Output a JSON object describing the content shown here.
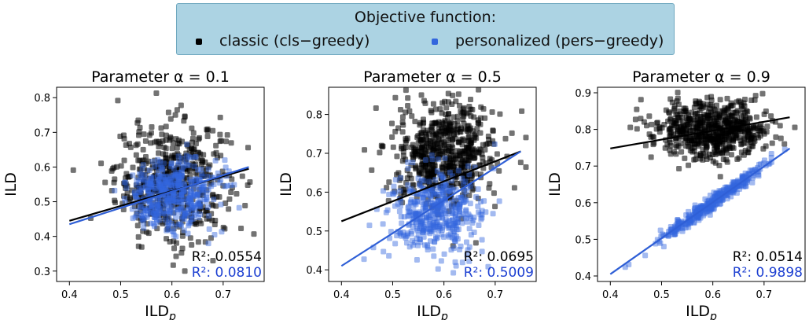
{
  "legend": {
    "title": "Objective function:",
    "entries": [
      {
        "label": "classic (cls−greedy)",
        "color": "#000000"
      },
      {
        "label": "personalized (pers−greedy)",
        "color": "#3366dd"
      }
    ]
  },
  "chart_data": [
    {
      "type": "scatter",
      "title": "Parameter α = 0.1",
      "xlabel": "ILD",
      "xlabel_sub": "p",
      "ylabel": "ILD",
      "xlim": [
        0.375,
        0.78
      ],
      "ylim": [
        0.27,
        0.83
      ],
      "xticks": [
        0.4,
        0.5,
        0.6,
        0.7
      ],
      "yticks": [
        0.3,
        0.4,
        0.5,
        0.6,
        0.7,
        0.8
      ],
      "xtick_labels": [
        "0.4",
        "0.5",
        "0.6",
        "0.7"
      ],
      "ytick_labels": [
        "0.3",
        "0.4",
        "0.5",
        "0.6",
        "0.7",
        "0.8"
      ],
      "series": [
        {
          "id": "classic",
          "color": "#000000",
          "center": [
            0.6,
            0.56
          ],
          "spread": [
            0.055,
            0.085
          ],
          "points": 520,
          "fit": {
            "x": [
              0.4,
              0.75
            ],
            "y": [
              0.445,
              0.595
            ]
          },
          "r2_label": "R²: 0.0554"
        },
        {
          "id": "personalized",
          "color": "#3366dd",
          "center": [
            0.6,
            0.52
          ],
          "spread": [
            0.045,
            0.05
          ],
          "points": 460,
          "fit": {
            "x": [
              0.4,
              0.75
            ],
            "y": [
              0.435,
              0.6
            ]
          },
          "r2_label": "R²: 0.0810"
        }
      ]
    },
    {
      "type": "scatter",
      "title": "Parameter α = 0.5",
      "xlabel": "ILD",
      "xlabel_sub": "p",
      "ylabel": "ILD",
      "xlim": [
        0.375,
        0.78
      ],
      "ylim": [
        0.37,
        0.87
      ],
      "xticks": [
        0.4,
        0.5,
        0.6,
        0.7
      ],
      "yticks": [
        0.4,
        0.5,
        0.6,
        0.7,
        0.8
      ],
      "xtick_labels": [
        "0.4",
        "0.5",
        "0.6",
        "0.7"
      ],
      "ytick_labels": [
        "0.4",
        "0.5",
        "0.6",
        "0.7",
        "0.8"
      ],
      "series": [
        {
          "id": "classic",
          "color": "#000000",
          "center": [
            0.6,
            0.7
          ],
          "spread": [
            0.05,
            0.065
          ],
          "points": 620,
          "fit": {
            "x": [
              0.4,
              0.75
            ],
            "y": [
              0.525,
              0.705
            ]
          },
          "r2_label": "R²: 0.0695"
        },
        {
          "id": "personalized",
          "color": "#3366dd",
          "center": [
            0.58,
            0.545
          ],
          "spread": [
            0.045,
            0.055
          ],
          "points": 440,
          "fit": {
            "x": [
              0.4,
              0.75
            ],
            "y": [
              0.41,
              0.705
            ]
          },
          "r2_label": "R²: 0.5009"
        }
      ]
    },
    {
      "type": "scatter",
      "title": "Parameter α = 0.9",
      "xlabel": "ILD",
      "xlabel_sub": "p",
      "ylabel": "ILD",
      "xlim": [
        0.375,
        0.78
      ],
      "ylim": [
        0.385,
        0.915
      ],
      "xticks": [
        0.4,
        0.5,
        0.6,
        0.7
      ],
      "yticks": [
        0.4,
        0.5,
        0.6,
        0.7,
        0.8,
        0.9
      ],
      "xtick_labels": [
        "0.4",
        "0.5",
        "0.6",
        "0.7"
      ],
      "ytick_labels": [
        "0.4",
        "0.5",
        "0.6",
        "0.7",
        "0.8",
        "0.9"
      ],
      "series": [
        {
          "id": "classic",
          "color": "#000000",
          "center": [
            0.6,
            0.8
          ],
          "spread": [
            0.055,
            0.04
          ],
          "points": 620,
          "fit": {
            "x": [
              0.4,
              0.75
            ],
            "y": [
              0.748,
              0.833
            ]
          },
          "r2_label": "R²: 0.0514"
        },
        {
          "id": "personalized",
          "color": "#3366dd",
          "center": [
            0.6,
            0.6
          ],
          "spread": [
            0.05,
            0.01
          ],
          "points": 380,
          "linear": true,
          "fit": {
            "x": [
              0.4,
              0.75
            ],
            "y": [
              0.405,
              0.748
            ]
          },
          "r2_label": "R²: 0.9898"
        }
      ]
    }
  ]
}
